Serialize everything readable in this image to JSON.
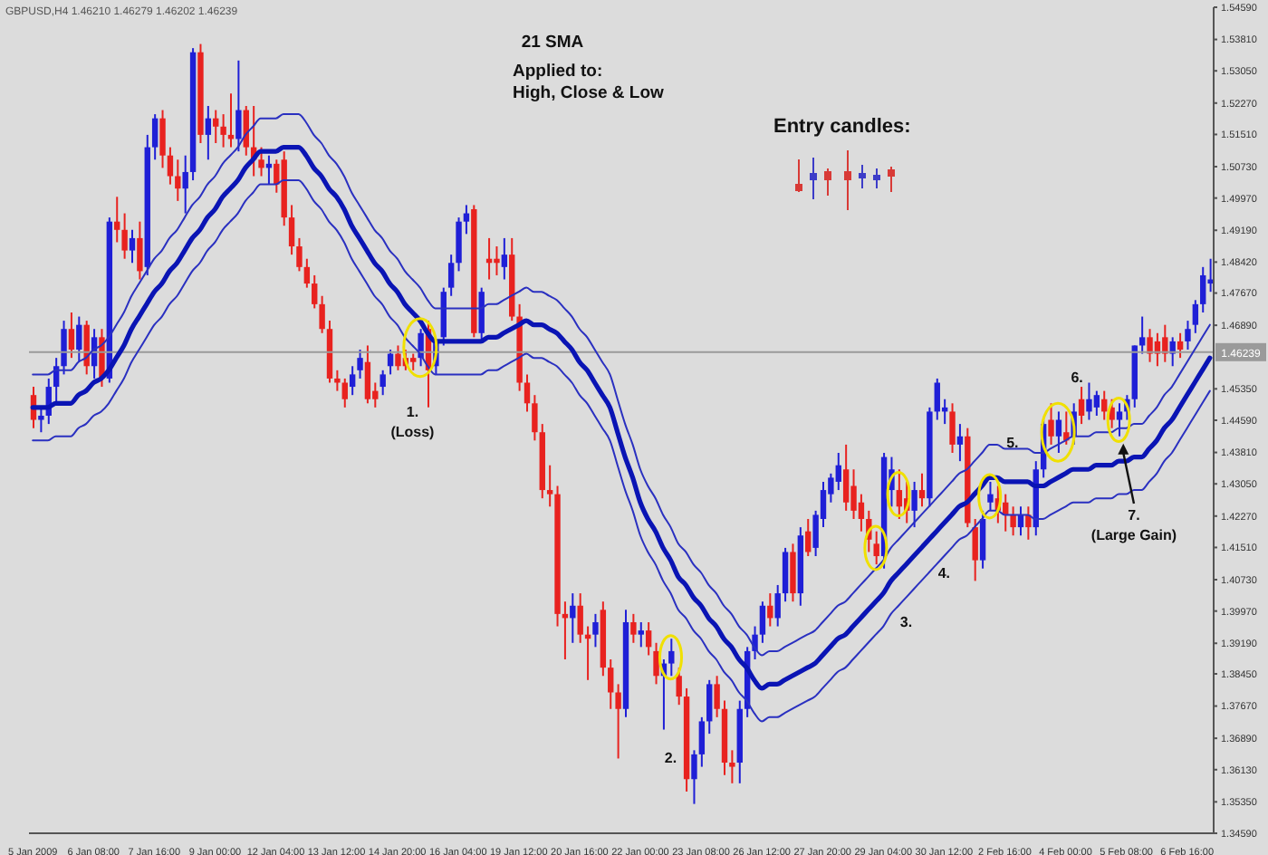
{
  "chart_data": {
    "type": "candlestick",
    "title": "GBPUSD,H4  1.46210 1.46279 1.46202 1.46239",
    "annotations": [
      "21 SMA",
      "Applied to:",
      "High, Close & Low",
      "Entry candles:",
      "1.",
      "(Loss)",
      "2.",
      "3.",
      "4.",
      "5.",
      "6.",
      "7.",
      "(Large Gain)"
    ],
    "categories": [
      "5 Jan 2009",
      null,
      null,
      null,
      null,
      null,
      null,
      null,
      "6 Jan 08:00",
      null,
      null,
      null,
      null,
      null,
      null,
      null,
      "7 Jan 16:00",
      null,
      null,
      null,
      null,
      null,
      null,
      null,
      "9 Jan 00:00",
      null,
      null,
      null,
      null,
      null,
      null,
      null,
      "12 Jan 04:00",
      null,
      null,
      null,
      null,
      null,
      null,
      null,
      "13 Jan 12:00",
      null,
      null,
      null,
      null,
      null,
      null,
      null,
      "14 Jan 20:00",
      null,
      null,
      null,
      null,
      null,
      null,
      null,
      "16 Jan 04:00",
      null,
      null,
      null,
      null,
      null,
      null,
      null,
      "19 Jan 12:00",
      null,
      null,
      null,
      null,
      null,
      null,
      null,
      "20 Jan 16:00",
      null,
      null,
      null,
      null,
      null,
      null,
      null,
      "22 Jan 00:00",
      null,
      null,
      null,
      null,
      null,
      null,
      null,
      "23 Jan 08:00",
      null,
      null,
      null,
      null,
      null,
      null,
      null,
      "26 Jan 12:00",
      null,
      null,
      null,
      null,
      null,
      null,
      null,
      "27 Jan 20:00",
      null,
      null,
      null,
      null,
      null,
      null,
      null,
      "29 Jan 04:00",
      null,
      null,
      null,
      null,
      null,
      null,
      null,
      "30 Jan 12:00",
      null,
      null,
      null,
      null,
      null,
      null,
      null,
      "2 Feb 16:00",
      null,
      null,
      null,
      null,
      null,
      null,
      null,
      "4 Feb 00:00",
      null,
      null,
      null,
      null,
      null,
      null,
      null,
      "5 Feb 08:00",
      null,
      null,
      null,
      null,
      null,
      null,
      null,
      "6 Feb 16:00",
      null,
      null,
      null
    ],
    "ylim": [
      1.3459,
      1.5459
    ],
    "yticks": [
      {
        "value": 1.5459,
        "label": "1.54590"
      },
      {
        "value": 1.5381,
        "label": "1.53810"
      },
      {
        "value": 1.5305,
        "label": "1.53050"
      },
      {
        "value": 1.5227,
        "label": "1.52270"
      },
      {
        "value": 1.5151,
        "label": "1.51510"
      },
      {
        "value": 1.5073,
        "label": "1.50730"
      },
      {
        "value": 1.4997,
        "label": "1.49970"
      },
      {
        "value": 1.4919,
        "label": "1.49190"
      },
      {
        "value": 1.4842,
        "label": "1.48420"
      },
      {
        "value": 1.4767,
        "label": "1.47670"
      },
      {
        "value": 1.4689,
        "label": "1.46890"
      },
      {
        "value": 1.4535,
        "label": "1.45350"
      },
      {
        "value": 1.4459,
        "label": "1.44590"
      },
      {
        "value": 1.4381,
        "label": "1.43810"
      },
      {
        "value": 1.4305,
        "label": "1.43050"
      },
      {
        "value": 1.4227,
        "label": "1.42270"
      },
      {
        "value": 1.4151,
        "label": "1.41510"
      },
      {
        "value": 1.4073,
        "label": "1.40730"
      },
      {
        "value": 1.3997,
        "label": "1.39970"
      },
      {
        "value": 1.3919,
        "label": "1.39190"
      },
      {
        "value": 1.3845,
        "label": "1.38450"
      },
      {
        "value": 1.3767,
        "label": "1.37670"
      },
      {
        "value": 1.3689,
        "label": "1.36890"
      },
      {
        "value": 1.3613,
        "label": "1.36130"
      },
      {
        "value": 1.3535,
        "label": "1.35350"
      },
      {
        "value": 1.3459,
        "label": "1.34590"
      }
    ],
    "ref_lines": [
      {
        "axis": "y",
        "value": 1.46239,
        "label": "1.46239",
        "color": "#9a9a9a"
      }
    ],
    "series": [
      {
        "ohlc": [
          [
            1.452,
            1.454,
            1.444,
            1.446
          ],
          [
            1.446,
            1.449,
            1.443,
            1.447
          ],
          [
            1.447,
            1.456,
            1.445,
            1.454
          ],
          [
            1.454,
            1.461,
            1.45,
            1.459
          ],
          [
            1.459,
            1.47,
            1.457,
            1.468
          ],
          [
            1.468,
            1.472,
            1.461,
            1.463
          ],
          [
            1.463,
            1.471,
            1.46,
            1.469
          ],
          [
            1.469,
            1.47,
            1.457,
            1.459
          ],
          [
            1.459,
            1.468,
            1.456,
            1.466
          ],
          [
            1.466,
            1.468,
            1.454,
            1.456
          ],
          [
            1.456,
            1.495,
            1.455,
            1.494
          ],
          [
            1.494,
            1.5,
            1.489,
            1.492
          ],
          [
            1.492,
            1.496,
            1.485,
            1.487
          ],
          [
            1.487,
            1.492,
            1.484,
            1.49
          ],
          [
            1.49,
            1.494,
            1.48,
            1.482
          ],
          [
            1.483,
            1.515,
            1.481,
            1.512
          ],
          [
            1.512,
            1.52,
            1.509,
            1.519
          ],
          [
            1.519,
            1.521,
            1.507,
            1.51
          ],
          [
            1.51,
            1.512,
            1.503,
            1.505
          ],
          [
            1.505,
            1.509,
            1.499,
            1.502
          ],
          [
            1.502,
            1.51,
            1.496,
            1.506
          ],
          [
            1.506,
            1.536,
            1.504,
            1.535
          ],
          [
            1.535,
            1.537,
            1.513,
            1.515
          ],
          [
            1.515,
            1.522,
            1.509,
            1.519
          ],
          [
            1.519,
            1.521,
            1.513,
            1.517
          ],
          [
            1.517,
            1.52,
            1.512,
            1.515
          ],
          [
            1.515,
            1.525,
            1.512,
            1.514
          ],
          [
            1.514,
            1.533,
            1.511,
            1.521
          ],
          [
            1.521,
            1.522,
            1.51,
            1.512
          ],
          [
            1.512,
            1.522,
            1.505,
            1.509
          ],
          [
            1.509,
            1.512,
            1.505,
            1.507
          ],
          [
            1.507,
            1.51,
            1.503,
            1.508
          ],
          [
            1.508,
            1.509,
            1.501,
            1.503
          ],
          [
            1.509,
            1.511,
            1.493,
            1.495
          ],
          [
            1.495,
            1.498,
            1.486,
            1.488
          ],
          [
            1.488,
            1.49,
            1.482,
            1.483
          ],
          [
            1.483,
            1.485,
            1.478,
            1.479
          ],
          [
            1.479,
            1.481,
            1.473,
            1.474
          ],
          [
            1.474,
            1.476,
            1.467,
            1.468
          ],
          [
            1.468,
            1.47,
            1.455,
            1.456
          ],
          [
            1.456,
            1.458,
            1.453,
            1.455
          ],
          [
            1.455,
            1.456,
            1.449,
            1.451
          ],
          [
            1.454,
            1.459,
            1.452,
            1.457
          ],
          [
            1.458,
            1.463,
            1.456,
            1.461
          ],
          [
            1.46,
            1.464,
            1.45,
            1.451
          ],
          [
            1.453,
            1.455,
            1.449,
            1.451
          ],
          [
            1.454,
            1.458,
            1.452,
            1.457
          ],
          [
            1.459,
            1.463,
            1.457,
            1.462
          ],
          [
            1.462,
            1.464,
            1.458,
            1.459
          ],
          [
            1.461,
            1.463,
            1.458,
            1.459
          ],
          [
            1.461,
            1.462,
            1.458,
            1.46
          ],
          [
            1.461,
            1.468,
            1.459,
            1.467
          ],
          [
            1.468,
            1.47,
            1.449,
            1.458
          ],
          [
            1.459,
            1.465,
            1.457,
            1.465
          ],
          [
            1.466,
            1.478,
            1.464,
            1.477
          ],
          [
            1.478,
            1.486,
            1.476,
            1.484
          ],
          [
            1.484,
            1.495,
            1.482,
            1.494
          ],
          [
            1.494,
            1.498,
            1.491,
            1.496
          ],
          [
            1.497,
            1.498,
            1.466,
            1.467
          ],
          [
            1.467,
            1.478,
            1.465,
            1.477
          ],
          [
            1.485,
            1.49,
            1.48,
            1.484
          ],
          [
            1.485,
            1.488,
            1.481,
            1.484
          ],
          [
            1.483,
            1.49,
            1.48,
            1.486
          ],
          [
            1.486,
            1.49,
            1.47,
            1.471
          ],
          [
            1.471,
            1.474,
            1.453,
            1.455
          ],
          [
            1.455,
            1.457,
            1.448,
            1.45
          ],
          [
            1.45,
            1.452,
            1.441,
            1.443
          ],
          [
            1.443,
            1.445,
            1.427,
            1.429
          ],
          [
            1.429,
            1.435,
            1.425,
            1.428
          ],
          [
            1.428,
            1.43,
            1.396,
            1.399
          ],
          [
            1.399,
            1.402,
            1.388,
            1.398
          ],
          [
            1.398,
            1.404,
            1.392,
            1.401
          ],
          [
            1.401,
            1.404,
            1.392,
            1.394
          ],
          [
            1.394,
            1.396,
            1.383,
            1.393
          ],
          [
            1.394,
            1.399,
            1.391,
            1.397
          ],
          [
            1.4,
            1.402,
            1.384,
            1.386
          ],
          [
            1.386,
            1.388,
            1.376,
            1.38
          ],
          [
            1.38,
            1.382,
            1.364,
            1.376
          ],
          [
            1.376,
            1.4,
            1.374,
            1.397
          ],
          [
            1.397,
            1.399,
            1.392,
            1.394
          ],
          [
            1.394,
            1.397,
            1.391,
            1.395
          ],
          [
            1.395,
            1.397,
            1.389,
            1.391
          ],
          [
            1.39,
            1.392,
            1.382,
            1.384
          ],
          [
            1.384,
            1.388,
            1.371,
            1.387
          ],
          [
            1.387,
            1.393,
            1.384,
            1.39
          ],
          [
            1.384,
            1.386,
            1.377,
            1.379
          ],
          [
            1.379,
            1.381,
            1.356,
            1.359
          ],
          [
            1.359,
            1.366,
            1.353,
            1.365
          ],
          [
            1.365,
            1.374,
            1.362,
            1.373
          ],
          [
            1.373,
            1.383,
            1.37,
            1.382
          ],
          [
            1.382,
            1.384,
            1.374,
            1.376
          ],
          [
            1.376,
            1.378,
            1.36,
            1.363
          ],
          [
            1.363,
            1.366,
            1.358,
            1.362
          ],
          [
            1.363,
            1.378,
            1.358,
            1.376
          ],
          [
            1.376,
            1.391,
            1.374,
            1.39
          ],
          [
            1.39,
            1.396,
            1.388,
            1.394
          ],
          [
            1.394,
            1.402,
            1.392,
            1.401
          ],
          [
            1.401,
            1.404,
            1.396,
            1.398
          ],
          [
            1.398,
            1.406,
            1.396,
            1.404
          ],
          [
            1.404,
            1.415,
            1.402,
            1.414
          ],
          [
            1.414,
            1.416,
            1.402,
            1.404
          ],
          [
            1.404,
            1.42,
            1.401,
            1.418
          ],
          [
            1.419,
            1.422,
            1.413,
            1.414
          ],
          [
            1.415,
            1.424,
            1.413,
            1.423
          ],
          [
            1.422,
            1.431,
            1.42,
            1.429
          ],
          [
            1.428,
            1.433,
            1.426,
            1.432
          ],
          [
            1.431,
            1.438,
            1.429,
            1.435
          ],
          [
            1.434,
            1.44,
            1.424,
            1.426
          ],
          [
            1.43,
            1.434,
            1.422,
            1.424
          ],
          [
            1.426,
            1.428,
            1.419,
            1.422
          ],
          [
            1.422,
            1.424,
            1.414,
            1.417
          ],
          [
            1.416,
            1.419,
            1.411,
            1.413
          ],
          [
            1.413,
            1.438,
            1.41,
            1.437
          ],
          [
            1.429,
            1.437,
            1.425,
            1.434
          ],
          [
            1.429,
            1.434,
            1.422,
            1.425
          ],
          [
            1.427,
            1.431,
            1.421,
            1.424
          ],
          [
            1.424,
            1.431,
            1.42,
            1.429
          ],
          [
            1.429,
            1.433,
            1.425,
            1.427
          ],
          [
            1.427,
            1.449,
            1.425,
            1.448
          ],
          [
            1.448,
            1.456,
            1.446,
            1.455
          ],
          [
            1.448,
            1.451,
            1.445,
            1.449
          ],
          [
            1.448,
            1.45,
            1.438,
            1.44
          ],
          [
            1.44,
            1.445,
            1.436,
            1.442
          ],
          [
            1.442,
            1.444,
            1.42,
            1.421
          ],
          [
            1.42,
            1.422,
            1.407,
            1.412
          ],
          [
            1.412,
            1.424,
            1.41,
            1.422
          ],
          [
            1.426,
            1.431,
            1.424,
            1.428
          ],
          [
            1.427,
            1.43,
            1.421,
            1.424
          ],
          [
            1.426,
            1.428,
            1.419,
            1.423
          ],
          [
            1.423,
            1.425,
            1.418,
            1.42
          ],
          [
            1.42,
            1.425,
            1.418,
            1.423
          ],
          [
            1.423,
            1.425,
            1.417,
            1.42
          ],
          [
            1.42,
            1.436,
            1.418,
            1.434
          ],
          [
            1.434,
            1.446,
            1.432,
            1.445
          ],
          [
            1.446,
            1.45,
            1.44,
            1.442
          ],
          [
            1.442,
            1.448,
            1.438,
            1.446
          ],
          [
            1.443,
            1.448,
            1.44,
            1.441
          ],
          [
            1.442,
            1.45,
            1.44,
            1.448
          ],
          [
            1.451,
            1.454,
            1.445,
            1.447
          ],
          [
            1.448,
            1.455,
            1.446,
            1.451
          ],
          [
            1.449,
            1.453,
            1.447,
            1.452
          ],
          [
            1.451,
            1.453,
            1.446,
            1.448
          ],
          [
            1.449,
            1.451,
            1.444,
            1.446
          ],
          [
            1.446,
            1.45,
            1.442,
            1.448
          ],
          [
            1.448,
            1.452,
            1.446,
            1.451
          ],
          [
            1.451,
            1.464,
            1.449,
            1.464
          ],
          [
            1.464,
            1.471,
            1.462,
            1.466
          ],
          [
            1.466,
            1.468,
            1.46,
            1.462
          ],
          [
            1.465,
            1.467,
            1.459,
            1.462
          ],
          [
            1.466,
            1.469,
            1.46,
            1.462
          ],
          [
            1.462,
            1.466,
            1.459,
            1.465
          ],
          [
            1.465,
            1.467,
            1.461,
            1.463
          ],
          [
            1.465,
            1.47,
            1.463,
            1.468
          ],
          [
            1.469,
            1.475,
            1.467,
            1.474
          ],
          [
            1.474,
            1.483,
            1.472,
            1.481
          ],
          [
            1.479,
            1.485,
            1.477,
            1.48
          ]
        ],
        "colors": [
          "#e8221f",
          "#1f1fd6",
          "#1f1fd6",
          "#1f1fd6",
          "#1f1fd6",
          "#e8221f",
          "#1f1fd6",
          "#e8221f",
          "#1f1fd6",
          "#e8221f",
          "#1f1fd6",
          "#e8221f",
          "#e8221f",
          "#1f1fd6",
          "#e8221f",
          "#1f1fd6",
          "#1f1fd6",
          "#e8221f",
          "#e8221f",
          "#e8221f",
          "#1f1fd6",
          "#1f1fd6",
          "#e8221f",
          "#1f1fd6",
          "#e8221f",
          "#e8221f",
          "#e8221f",
          "#1f1fd6",
          "#e8221f",
          "#e8221f",
          "#e8221f",
          "#1f1fd6",
          "#e8221f",
          "#e8221f",
          "#e8221f",
          "#e8221f",
          "#e8221f",
          "#e8221f",
          "#e8221f",
          "#e8221f",
          "#e8221f",
          "#e8221f",
          "#1f1fd6",
          "#1f1fd6",
          "#e8221f",
          "#e8221f",
          "#1f1fd6",
          "#1f1fd6",
          "#e8221f",
          "#e8221f",
          "#e8221f",
          "#1f1fd6",
          "#e8221f",
          "#1f1fd6",
          "#1f1fd6",
          "#1f1fd6",
          "#1f1fd6",
          "#1f1fd6",
          "#e8221f",
          "#1f1fd6",
          "#e8221f",
          "#e8221f",
          "#1f1fd6",
          "#e8221f",
          "#e8221f",
          "#e8221f",
          "#e8221f",
          "#e8221f",
          "#e8221f",
          "#e8221f",
          "#e8221f",
          "#1f1fd6",
          "#e8221f",
          "#e8221f",
          "#1f1fd6",
          "#e8221f",
          "#e8221f",
          "#e8221f",
          "#1f1fd6",
          "#e8221f",
          "#1f1fd6",
          "#e8221f",
          "#e8221f",
          "#1f1fd6",
          "#1f1fd6",
          "#e8221f",
          "#e8221f",
          "#1f1fd6",
          "#1f1fd6",
          "#1f1fd6",
          "#e8221f",
          "#e8221f",
          "#e8221f",
          "#1f1fd6",
          "#1f1fd6",
          "#1f1fd6",
          "#1f1fd6",
          "#e8221f",
          "#1f1fd6",
          "#1f1fd6",
          "#e8221f",
          "#1f1fd6",
          "#e8221f",
          "#1f1fd6",
          "#1f1fd6",
          "#1f1fd6",
          "#1f1fd6",
          "#e8221f",
          "#e8221f",
          "#e8221f",
          "#e8221f",
          "#e8221f",
          "#1f1fd6",
          "#1f1fd6",
          "#e8221f",
          "#e8221f",
          "#1f1fd6",
          "#e8221f",
          "#1f1fd6",
          "#1f1fd6",
          "#1f1fd6",
          "#e8221f",
          "#1f1fd6",
          "#e8221f",
          "#e8221f",
          "#1f1fd6",
          "#1f1fd6",
          "#e8221f",
          "#e8221f",
          "#e8221f",
          "#1f1fd6",
          "#e8221f",
          "#1f1fd6",
          "#1f1fd6",
          "#e8221f",
          "#1f1fd6",
          "#e8221f",
          "#1f1fd6",
          "#e8221f",
          "#1f1fd6",
          "#1f1fd6",
          "#e8221f",
          "#e8221f",
          "#1f1fd6",
          "#1f1fd6",
          "#1f1fd6",
          "#1f1fd6",
          "#e8221f",
          "#e8221f",
          "#e8221f",
          "#1f1fd6",
          "#e8221f",
          "#1f1fd6",
          "#1f1fd6",
          "#1f1fd6",
          "#1f1fd6"
        ]
      },
      {
        "type": "line",
        "color": "#0a14b4",
        "values": [
          1.449,
          1.449,
          1.449,
          1.45,
          1.45,
          1.45,
          1.452,
          1.453,
          1.455,
          1.456,
          1.458,
          1.461,
          1.464,
          1.468,
          1.471,
          1.474,
          1.477,
          1.479,
          1.482,
          1.484,
          1.487,
          1.49,
          1.492,
          1.495,
          1.497,
          1.5,
          1.502,
          1.504,
          1.507,
          1.509,
          1.511,
          1.511,
          1.511,
          1.512,
          1.512,
          1.512,
          1.51,
          1.507,
          1.505,
          1.502,
          1.5,
          1.497,
          1.493,
          1.49,
          1.487,
          1.484,
          1.482,
          1.479,
          1.477,
          1.474,
          1.472,
          1.47,
          1.467,
          1.465,
          1.465,
          1.465,
          1.465,
          1.465,
          1.465,
          1.465,
          1.466,
          1.466,
          1.467,
          1.468,
          1.469,
          1.47,
          1.469,
          1.469,
          1.468,
          1.467,
          1.465,
          1.463,
          1.46,
          1.458,
          1.455,
          1.452,
          1.449,
          1.443,
          1.437,
          1.432,
          1.426,
          1.422,
          1.419,
          1.415,
          1.412,
          1.408,
          1.406,
          1.403,
          1.401,
          1.398,
          1.396,
          1.393,
          1.391,
          1.388,
          1.386,
          1.383,
          1.381,
          1.382,
          1.382,
          1.383,
          1.384,
          1.385,
          1.386,
          1.387,
          1.389,
          1.391,
          1.393,
          1.394,
          1.396,
          1.398,
          1.4,
          1.402,
          1.404,
          1.407,
          1.409,
          1.411,
          1.413,
          1.415,
          1.417,
          1.419,
          1.421,
          1.423,
          1.425,
          1.426,
          1.428,
          1.43,
          1.432,
          1.432,
          1.431,
          1.431,
          1.431,
          1.431,
          1.43,
          1.43,
          1.431,
          1.432,
          1.433,
          1.434,
          1.434,
          1.434,
          1.435,
          1.435,
          1.435,
          1.436,
          1.436,
          1.437,
          1.437,
          1.439,
          1.441,
          1.444,
          1.446,
          1.449,
          1.452,
          1.455,
          1.458,
          1.461
        ]
      },
      {
        "type": "line",
        "color": "#2a30c0",
        "values": [
          1.457,
          1.457,
          1.457,
          1.458,
          1.458,
          1.458,
          1.46,
          1.461,
          1.463,
          1.464,
          1.466,
          1.469,
          1.472,
          1.476,
          1.479,
          1.482,
          1.485,
          1.487,
          1.49,
          1.492,
          1.495,
          1.498,
          1.5,
          1.503,
          1.505,
          1.508,
          1.51,
          1.512,
          1.515,
          1.517,
          1.519,
          1.519,
          1.519,
          1.52,
          1.52,
          1.52,
          1.518,
          1.515,
          1.513,
          1.51,
          1.508,
          1.505,
          1.501,
          1.498,
          1.495,
          1.492,
          1.49,
          1.487,
          1.485,
          1.482,
          1.48,
          1.478,
          1.475,
          1.473,
          1.473,
          1.473,
          1.473,
          1.473,
          1.473,
          1.473,
          1.474,
          1.474,
          1.475,
          1.476,
          1.477,
          1.478,
          1.477,
          1.477,
          1.476,
          1.475,
          1.473,
          1.471,
          1.468,
          1.466,
          1.463,
          1.46,
          1.457,
          1.451,
          1.445,
          1.44,
          1.434,
          1.43,
          1.427,
          1.423,
          1.42,
          1.416,
          1.414,
          1.411,
          1.409,
          1.406,
          1.404,
          1.401,
          1.399,
          1.396,
          1.394,
          1.391,
          1.389,
          1.39,
          1.39,
          1.391,
          1.392,
          1.393,
          1.394,
          1.395,
          1.397,
          1.399,
          1.401,
          1.402,
          1.404,
          1.406,
          1.408,
          1.41,
          1.412,
          1.415,
          1.417,
          1.419,
          1.421,
          1.423,
          1.425,
          1.427,
          1.429,
          1.431,
          1.433,
          1.434,
          1.436,
          1.438,
          1.44,
          1.44,
          1.439,
          1.439,
          1.439,
          1.439,
          1.438,
          1.438,
          1.439,
          1.44,
          1.441,
          1.442,
          1.442,
          1.442,
          1.443,
          1.443,
          1.443,
          1.444,
          1.444,
          1.445,
          1.445,
          1.447,
          1.449,
          1.452,
          1.454,
          1.457,
          1.46,
          1.463,
          1.466,
          1.469
        ]
      },
      {
        "type": "line",
        "color": "#2a30c0",
        "values": [
          1.441,
          1.441,
          1.441,
          1.442,
          1.442,
          1.442,
          1.444,
          1.445,
          1.447,
          1.448,
          1.45,
          1.453,
          1.456,
          1.46,
          1.463,
          1.466,
          1.469,
          1.471,
          1.474,
          1.476,
          1.479,
          1.482,
          1.484,
          1.487,
          1.489,
          1.492,
          1.494,
          1.496,
          1.499,
          1.501,
          1.503,
          1.503,
          1.503,
          1.504,
          1.504,
          1.504,
          1.502,
          1.499,
          1.497,
          1.494,
          1.492,
          1.489,
          1.485,
          1.482,
          1.479,
          1.476,
          1.474,
          1.471,
          1.469,
          1.466,
          1.464,
          1.462,
          1.459,
          1.457,
          1.457,
          1.457,
          1.457,
          1.457,
          1.457,
          1.457,
          1.458,
          1.458,
          1.459,
          1.46,
          1.461,
          1.462,
          1.461,
          1.461,
          1.46,
          1.459,
          1.457,
          1.455,
          1.452,
          1.45,
          1.447,
          1.444,
          1.441,
          1.435,
          1.429,
          1.424,
          1.418,
          1.414,
          1.411,
          1.407,
          1.404,
          1.4,
          1.398,
          1.395,
          1.393,
          1.39,
          1.388,
          1.385,
          1.383,
          1.38,
          1.378,
          1.375,
          1.373,
          1.374,
          1.374,
          1.375,
          1.376,
          1.377,
          1.378,
          1.379,
          1.381,
          1.383,
          1.385,
          1.386,
          1.388,
          1.39,
          1.392,
          1.394,
          1.396,
          1.399,
          1.401,
          1.403,
          1.405,
          1.407,
          1.409,
          1.411,
          1.413,
          1.415,
          1.417,
          1.418,
          1.42,
          1.422,
          1.424,
          1.424,
          1.423,
          1.423,
          1.423,
          1.423,
          1.422,
          1.422,
          1.423,
          1.424,
          1.425,
          1.426,
          1.426,
          1.426,
          1.427,
          1.427,
          1.427,
          1.428,
          1.428,
          1.429,
          1.429,
          1.431,
          1.433,
          1.436,
          1.438,
          1.441,
          1.444,
          1.447,
          1.45,
          1.453
        ]
      }
    ]
  }
}
